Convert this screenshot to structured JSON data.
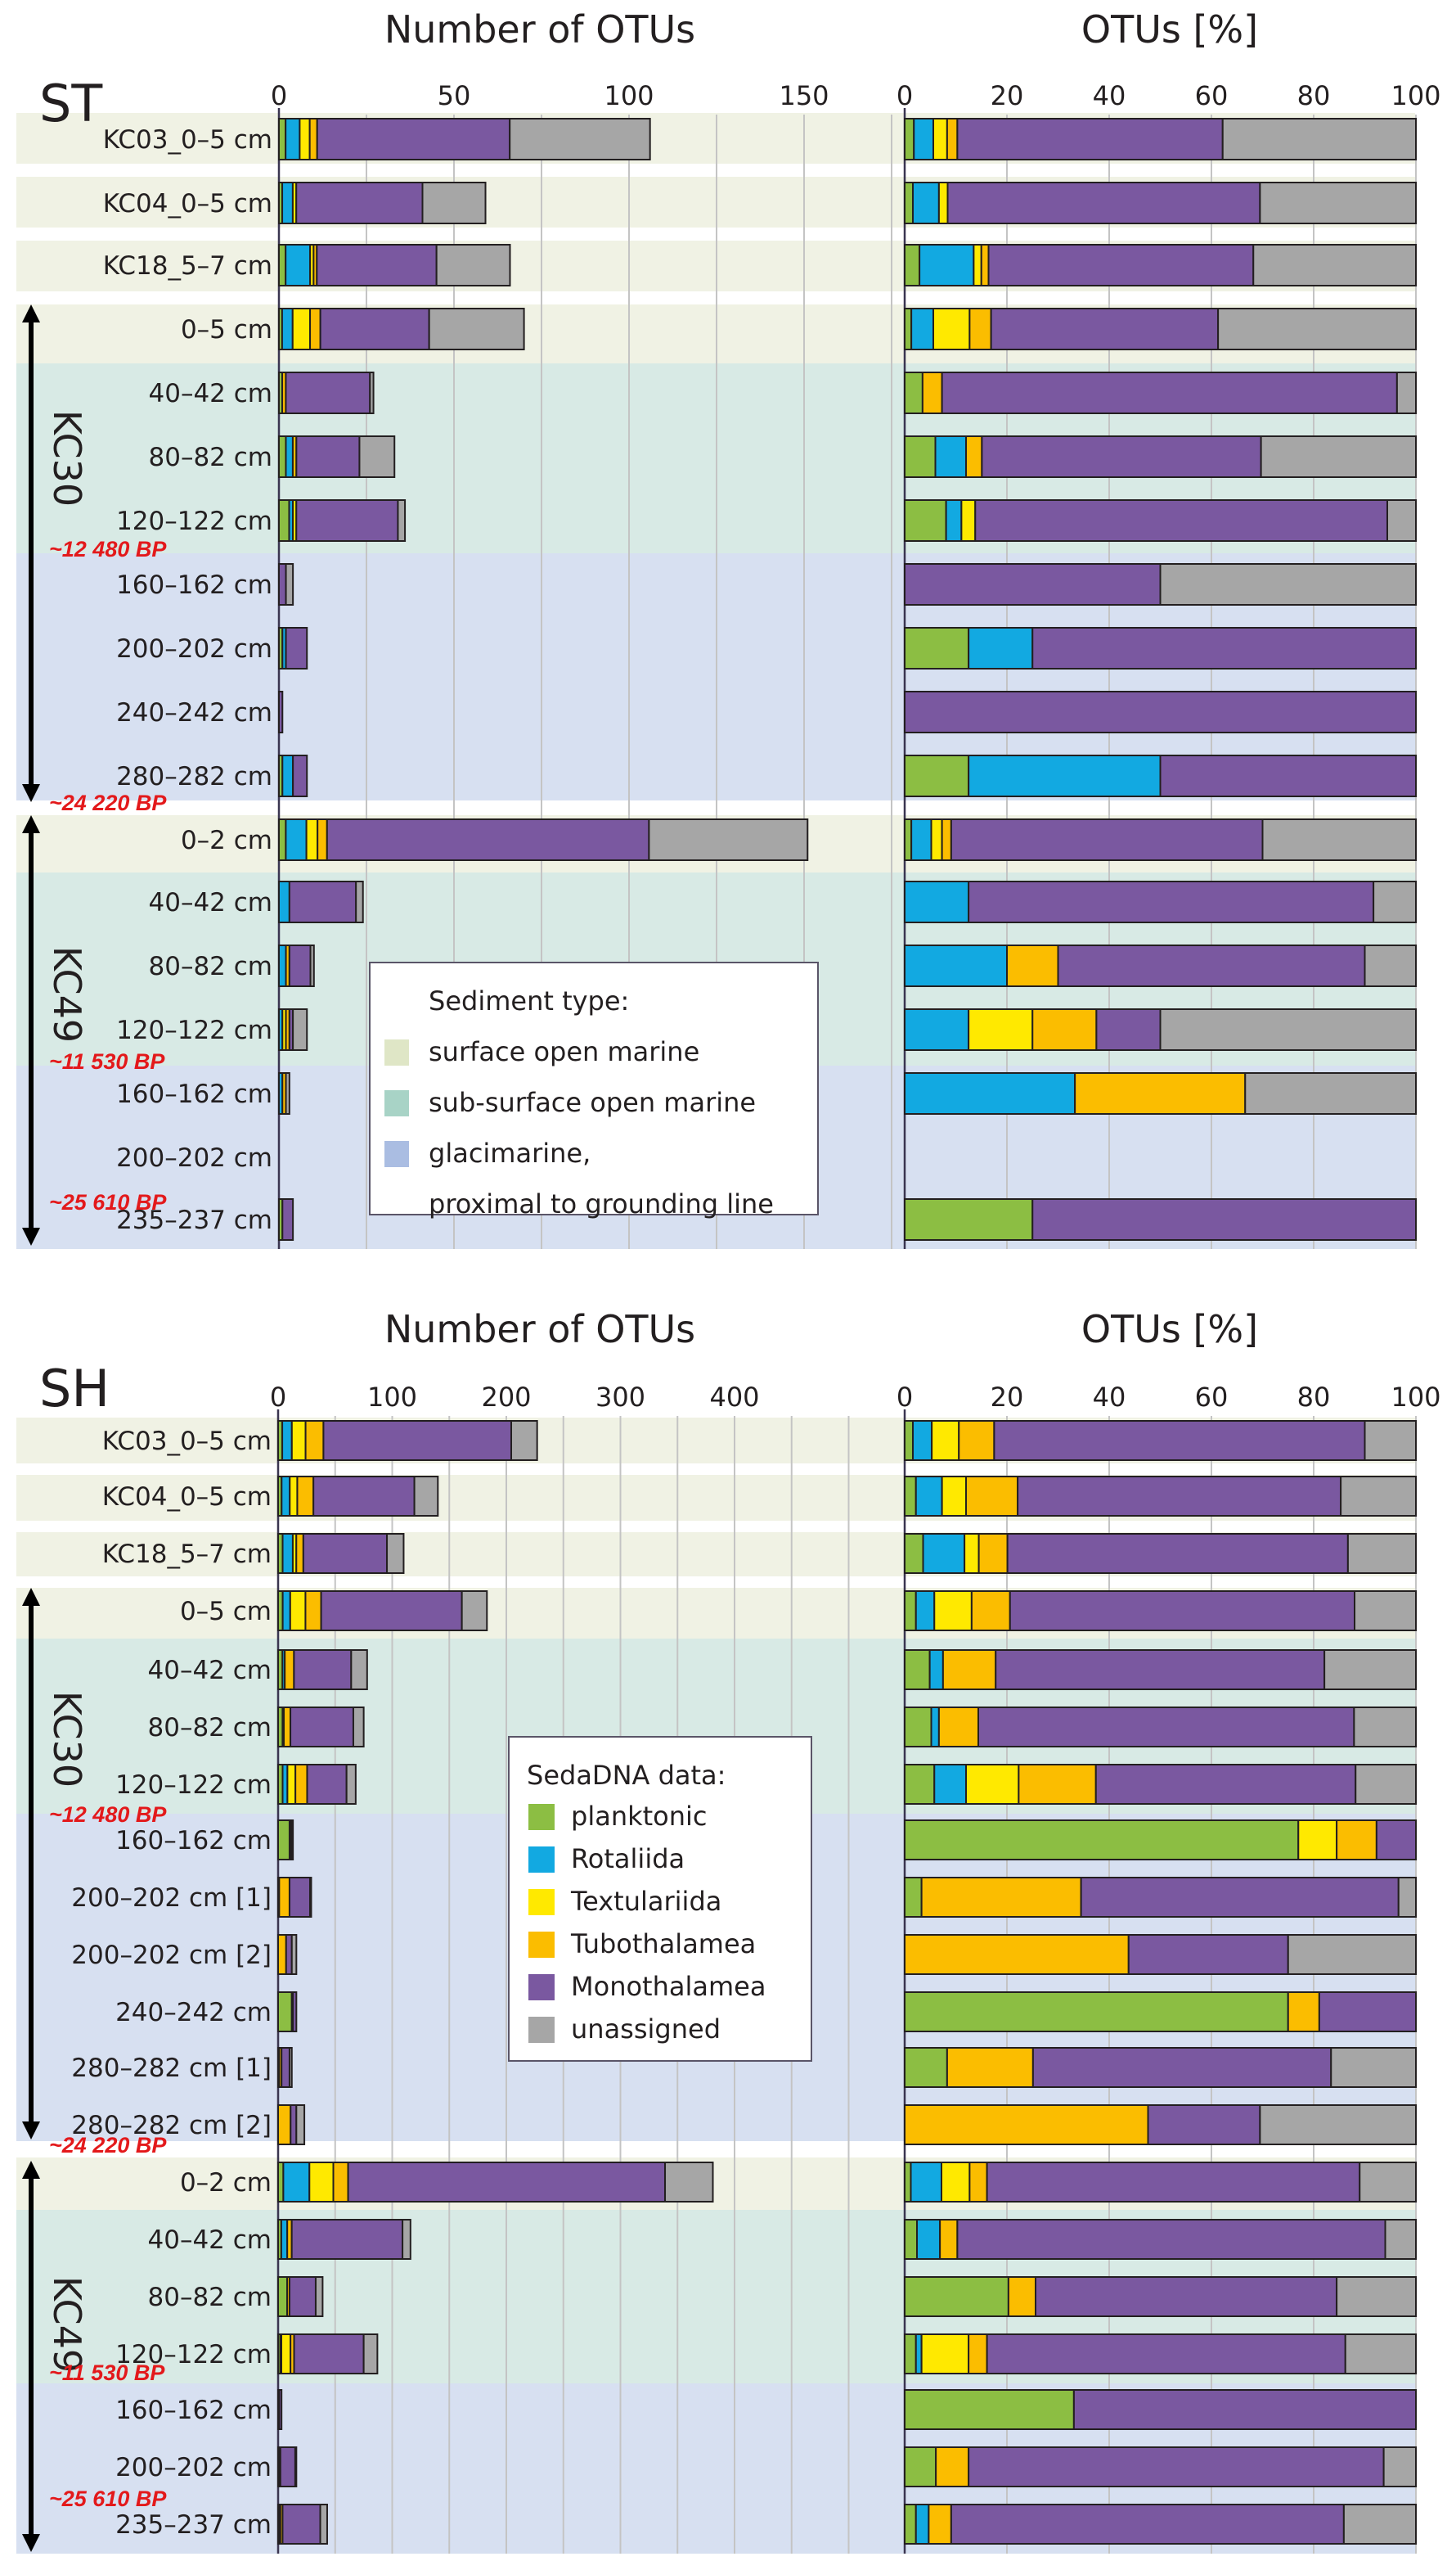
{
  "legend_categories": [
    {
      "key": "planktonic",
      "label": "planktonic",
      "color": "#8cbe43"
    },
    {
      "key": "rotaliida",
      "label": "Rotaliida",
      "color": "#12a9e1"
    },
    {
      "key": "textulariida",
      "label": "Textulariida",
      "color": "#ffe900"
    },
    {
      "key": "tubothalamea",
      "label": "Tubothalamea",
      "color": "#fbbd00"
    },
    {
      "key": "monothalamea",
      "label": "Monothalamea",
      "color": "#7a58a0"
    },
    {
      "key": "unassigned",
      "label": "unassigned",
      "color": "#a6a6a6"
    }
  ],
  "sediment_types": [
    {
      "key": "surface",
      "label": "surface open marine",
      "color": "#f0f2e4",
      "swatch": "#dfe6c6"
    },
    {
      "key": "subsurface",
      "label": "sub-surface open marine",
      "color": "#d8eae5",
      "swatch": "#a8d3c6"
    },
    {
      "key": "glacimarine",
      "label": "glacimarine,",
      "label2": "proximal to grounding line",
      "color": "#d7e0f1",
      "swatch": "#aabde2"
    }
  ],
  "legends": {
    "sediment_title": "Sediment type:",
    "sedadna_title": "SedaDNA data:"
  },
  "chart_data": [
    {
      "type": "bar",
      "orientation": "horizontal-stacked",
      "panel": "ST",
      "title_left": "Number of OTUs",
      "title_right": "OTUs [%]",
      "left_axis": {
        "ticks": [
          0,
          50,
          100,
          150
        ],
        "grid_step": 25,
        "xlim": [
          0,
          175
        ]
      },
      "right_axis": {
        "ticks": [
          0,
          20,
          40,
          60,
          80,
          100
        ],
        "grid_step": 20,
        "xlim": [
          0,
          100
        ]
      },
      "cores": [
        {
          "name": "KC30",
          "ages": [
            "~12 480 BP",
            "~24 220 BP"
          ]
        },
        {
          "name": "KC49",
          "ages": [
            "~11 530 BP",
            "~25 610 BP"
          ]
        }
      ],
      "series_order": [
        "planktonic",
        "rotaliida",
        "textulariida",
        "tubothalamea",
        "monothalamea",
        "unassigned"
      ],
      "rows": [
        {
          "label": "KC03_0–5 cm",
          "core": null,
          "sediment": "surface",
          "total": 106,
          "pct": [
            1.8,
            3.8,
            2.7,
            2.0,
            51.9,
            37.8
          ]
        },
        {
          "label": "KC04_0–5 cm",
          "core": null,
          "sediment": "surface",
          "total": 59,
          "pct": [
            1.6,
            5.1,
            1.7,
            0,
            61.1,
            30.5
          ]
        },
        {
          "label": "KC18_5–7 cm",
          "core": null,
          "sediment": "surface",
          "total": 66,
          "pct": [
            2.9,
            10.6,
            1.5,
            1.4,
            51.8,
            31.8
          ]
        },
        {
          "label": "0–5 cm",
          "core": "KC30",
          "sediment": "surface",
          "total": 70,
          "pct": [
            1.3,
            4.3,
            7.1,
            4.2,
            44.4,
            38.7
          ]
        },
        {
          "label": "40–42 cm",
          "core": "KC30",
          "sediment": "subsurface",
          "total": 27,
          "pct": [
            3.5,
            0,
            0,
            3.8,
            89.0,
            3.7
          ]
        },
        {
          "label": "80–82 cm",
          "core": "KC30",
          "sediment": "subsurface",
          "total": 33,
          "pct": [
            6.0,
            6.0,
            0,
            3.1,
            54.6,
            30.3
          ]
        },
        {
          "label": "120–122 cm",
          "core": "KC30",
          "sediment": "subsurface",
          "total": 36,
          "pct": [
            8.1,
            3.0,
            2.7,
            0,
            80.6,
            5.6
          ]
        },
        {
          "label": "160–162 cm",
          "core": "KC30",
          "sediment": "glacimarine",
          "total": 4,
          "pct": [
            0,
            0,
            0,
            0,
            50,
            50
          ]
        },
        {
          "label": "200–202 cm",
          "core": "KC30",
          "sediment": "glacimarine",
          "total": 8,
          "pct": [
            12.5,
            12.5,
            0,
            0,
            75,
            0
          ]
        },
        {
          "label": "240–242 cm",
          "core": "KC30",
          "sediment": "glacimarine",
          "total": 1,
          "pct": [
            0,
            0,
            0,
            0,
            100,
            0
          ]
        },
        {
          "label": "280–282 cm",
          "core": "KC30",
          "sediment": "glacimarine",
          "total": 8,
          "pct": [
            12.5,
            37.5,
            0,
            0,
            50,
            0
          ]
        },
        {
          "label": "0–2 cm",
          "core": "KC49",
          "sediment": "surface",
          "total": 151,
          "pct": [
            1.3,
            3.9,
            2.1,
            1.8,
            60.9,
            30.0
          ]
        },
        {
          "label": "40–42 cm",
          "core": "KC49",
          "sediment": "subsurface",
          "total": 24,
          "pct": [
            0,
            12.5,
            0,
            0,
            79.2,
            8.3
          ]
        },
        {
          "label": "80–82 cm",
          "core": "KC49",
          "sediment": "subsurface",
          "total": 10,
          "pct": [
            0,
            20,
            0,
            10,
            60,
            10
          ]
        },
        {
          "label": "120–122 cm",
          "core": "KC49",
          "sediment": "subsurface",
          "total": 8,
          "pct": [
            0,
            12.5,
            12.5,
            12.5,
            12.5,
            50
          ]
        },
        {
          "label": "160–162 cm",
          "core": "KC49",
          "sediment": "glacimarine",
          "total": 3,
          "pct": [
            0,
            33.3,
            0,
            33.3,
            0,
            33.4
          ]
        },
        {
          "label": "200–202 cm",
          "core": "KC49",
          "sediment": "glacimarine",
          "total": 0,
          "pct": [
            0,
            0,
            0,
            0,
            0,
            0
          ]
        },
        {
          "label": "235–237 cm",
          "core": "KC49",
          "sediment": "glacimarine",
          "total": 4,
          "pct": [
            25,
            0,
            0,
            0,
            75,
            0
          ]
        }
      ]
    },
    {
      "type": "bar",
      "orientation": "horizontal-stacked",
      "panel": "SH",
      "title_left": "Number of OTUs",
      "title_right": "OTUs [%]",
      "left_axis": {
        "ticks": [
          0,
          100,
          200,
          300,
          400
        ],
        "grid_step": 50,
        "xlim": [
          0,
          500
        ]
      },
      "right_axis": {
        "ticks": [
          0,
          20,
          40,
          60,
          80,
          100
        ],
        "grid_step": 20,
        "xlim": [
          0,
          100
        ]
      },
      "cores": [
        {
          "name": "KC30",
          "ages": [
            "~12 480 BP",
            "~24 220 BP"
          ]
        },
        {
          "name": "KC49",
          "ages": [
            "~11 530 BP",
            "~25 610 BP"
          ]
        }
      ],
      "series_order": [
        "planktonic",
        "rotaliida",
        "textulariida",
        "tubothalamea",
        "monothalamea",
        "unassigned"
      ],
      "rows": [
        {
          "label": "KC03_0–5 cm",
          "core": null,
          "sediment": "surface",
          "total": 227,
          "pct": [
            1.6,
            3.7,
            5.3,
            6.9,
            72.5,
            10.0
          ]
        },
        {
          "label": "KC04_0–5 cm",
          "core": null,
          "sediment": "surface",
          "total": 140,
          "pct": [
            2.2,
            5.1,
            4.7,
            10.1,
            63.2,
            14.7
          ]
        },
        {
          "label": "KC18_5–7 cm",
          "core": null,
          "sediment": "surface",
          "total": 110,
          "pct": [
            3.6,
            8.1,
            2.8,
            5.6,
            66.6,
            13.3
          ]
        },
        {
          "label": "0–5 cm",
          "core": "KC30",
          "sediment": "surface",
          "total": 183,
          "pct": [
            2.2,
            3.6,
            7.3,
            7.5,
            67.4,
            12.0
          ]
        },
        {
          "label": "40–42 cm",
          "core": "KC30",
          "sediment": "subsurface",
          "total": 78,
          "pct": [
            4.9,
            2.6,
            0,
            10.3,
            64.3,
            17.9
          ]
        },
        {
          "label": "80–82 cm",
          "core": "KC30",
          "sediment": "subsurface",
          "total": 75,
          "pct": [
            5.2,
            1.5,
            0,
            7.7,
            73.5,
            12.1
          ]
        },
        {
          "label": "120–122 cm",
          "core": "KC30",
          "sediment": "subsurface",
          "total": 68,
          "pct": [
            5.8,
            6.2,
            10.3,
            15.1,
            50.8,
            11.8
          ]
        },
        {
          "label": "160–162 cm",
          "core": "KC30",
          "sediment": "glacimarine",
          "total": 13,
          "pct": [
            77.0,
            0,
            7.5,
            7.8,
            7.7,
            0
          ]
        },
        {
          "label": "200–202 cm [1]",
          "core": "KC30",
          "sediment": "glacimarine",
          "total": 29,
          "pct": [
            3.3,
            0,
            0,
            31.2,
            62.1,
            3.4
          ]
        },
        {
          "label": "200–202 cm [2]",
          "core": "KC30",
          "sediment": "glacimarine",
          "total": 16,
          "pct": [
            0,
            0,
            0,
            43.8,
            31.2,
            25.0
          ]
        },
        {
          "label": "240–242 cm",
          "core": "KC30",
          "sediment": "glacimarine",
          "total": 16,
          "pct": [
            75.0,
            0,
            0,
            6.1,
            18.9,
            0
          ]
        },
        {
          "label": "280–282 cm [1]",
          "core": "KC30",
          "sediment": "glacimarine",
          "total": 12,
          "pct": [
            8.3,
            0,
            0,
            16.8,
            58.3,
            16.6
          ]
        },
        {
          "label": "280–282 cm [2]",
          "core": "KC30",
          "sediment": "glacimarine",
          "total": 23,
          "pct": [
            0,
            0,
            0,
            47.6,
            21.9,
            30.5
          ]
        },
        {
          "label": "0–2 cm",
          "core": "KC49",
          "sediment": "surface",
          "total": 381,
          "pct": [
            1.2,
            6.0,
            5.5,
            3.4,
            72.9,
            11.0
          ]
        },
        {
          "label": "40–42 cm",
          "core": "KC49",
          "sediment": "subsurface",
          "total": 116,
          "pct": [
            2.4,
            4.5,
            0,
            3.4,
            83.7,
            6.0
          ]
        },
        {
          "label": "80–82 cm",
          "core": "KC49",
          "sediment": "subsurface",
          "total": 39,
          "pct": [
            20.3,
            0,
            0,
            5.3,
            58.9,
            15.5
          ]
        },
        {
          "label": "120–122 cm",
          "core": "KC49",
          "sediment": "subsurface",
          "total": 87,
          "pct": [
            2.2,
            1.1,
            9.2,
            3.6,
            70.1,
            13.8
          ]
        },
        {
          "label": "160–162 cm",
          "core": "KC49",
          "sediment": "glacimarine",
          "total": 3,
          "pct": [
            33.1,
            0,
            0,
            0,
            66.9,
            0
          ]
        },
        {
          "label": "200–202 cm",
          "core": "KC49",
          "sediment": "glacimarine",
          "total": 16,
          "pct": [
            6.1,
            0,
            0,
            6.4,
            81.2,
            6.3
          ]
        },
        {
          "label": "235–237 cm",
          "core": "KC49",
          "sediment": "glacimarine",
          "total": 43,
          "pct": [
            2.2,
            2.5,
            0,
            4.4,
            76.8,
            14.1
          ]
        }
      ]
    }
  ]
}
